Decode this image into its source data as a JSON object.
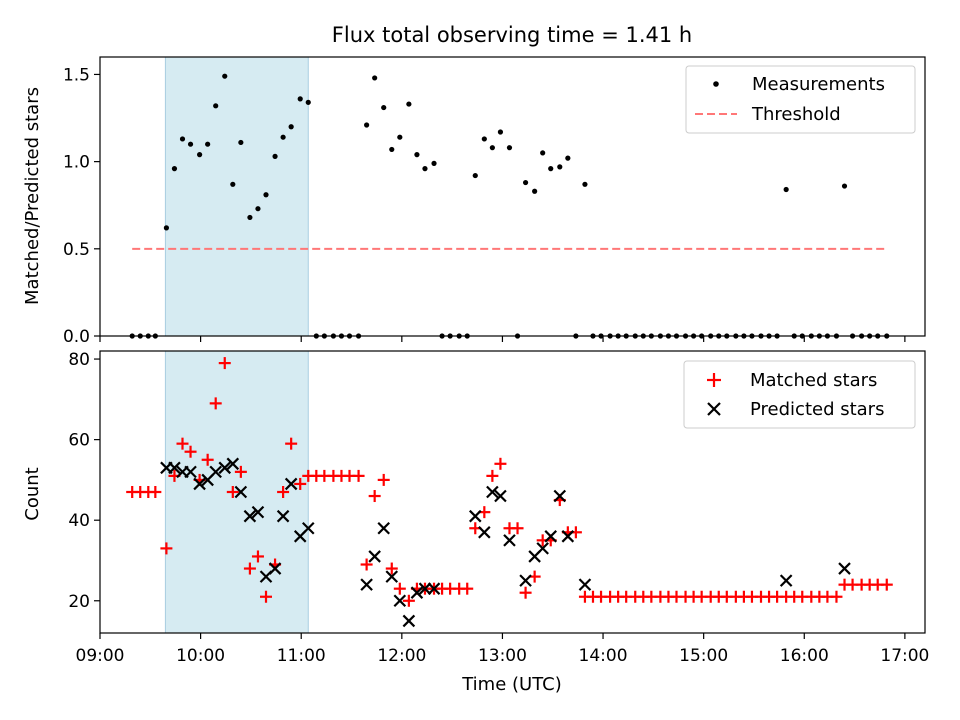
{
  "title": "Flux total observing time = 1.41 h",
  "chart_data": [
    {
      "type": "scatter",
      "ylabel": "Matched/Predicted stars",
      "xlim": [
        9.0,
        17.2
      ],
      "ylim": [
        0.0,
        1.6
      ],
      "yticks": [
        0.0,
        0.5,
        1.0,
        1.5
      ],
      "yticklabels": [
        "0.0",
        "0.5",
        "1.0",
        "1.5"
      ],
      "shaded_span": [
        9.65,
        11.07
      ],
      "threshold": {
        "x_range": [
          9.32,
          16.82
        ],
        "value": 0.5
      },
      "legend": {
        "position": "top-right",
        "measurements_label": "Measurements",
        "threshold_label": "Threshold"
      },
      "measurements": [
        [
          9.32,
          0
        ],
        [
          9.4,
          0
        ],
        [
          9.48,
          0
        ],
        [
          9.55,
          0
        ],
        [
          9.66,
          0.62
        ],
        [
          9.74,
          0.96
        ],
        [
          9.82,
          1.13
        ],
        [
          9.9,
          1.1
        ],
        [
          9.99,
          1.04
        ],
        [
          10.07,
          1.1
        ],
        [
          10.15,
          1.32
        ],
        [
          10.24,
          1.49
        ],
        [
          10.32,
          0.87
        ],
        [
          10.4,
          1.11
        ],
        [
          10.49,
          0.68
        ],
        [
          10.57,
          0.73
        ],
        [
          10.65,
          0.81
        ],
        [
          10.74,
          1.03
        ],
        [
          10.82,
          1.14
        ],
        [
          10.9,
          1.2
        ],
        [
          10.99,
          1.36
        ],
        [
          11.07,
          1.34
        ],
        [
          11.15,
          0
        ],
        [
          11.23,
          0
        ],
        [
          11.32,
          0
        ],
        [
          11.4,
          0
        ],
        [
          11.48,
          0
        ],
        [
          11.57,
          0
        ],
        [
          11.65,
          1.21
        ],
        [
          11.73,
          1.48
        ],
        [
          11.82,
          1.31
        ],
        [
          11.9,
          1.07
        ],
        [
          11.98,
          1.14
        ],
        [
          12.07,
          1.33
        ],
        [
          12.15,
          1.04
        ],
        [
          12.23,
          0.96
        ],
        [
          12.32,
          0.99
        ],
        [
          12.4,
          0
        ],
        [
          12.48,
          0
        ],
        [
          12.57,
          0
        ],
        [
          12.65,
          0
        ],
        [
          12.73,
          0.92
        ],
        [
          12.82,
          1.13
        ],
        [
          12.9,
          1.08
        ],
        [
          12.98,
          1.17
        ],
        [
          13.07,
          1.08
        ],
        [
          13.15,
          0
        ],
        [
          13.23,
          0.88
        ],
        [
          13.32,
          0.83
        ],
        [
          13.4,
          1.05
        ],
        [
          13.48,
          0.96
        ],
        [
          13.57,
          0.97
        ],
        [
          13.65,
          1.02
        ],
        [
          13.73,
          0
        ],
        [
          13.82,
          0.87
        ],
        [
          13.9,
          0
        ],
        [
          13.98,
          0
        ],
        [
          14.07,
          0
        ],
        [
          14.15,
          0
        ],
        [
          14.23,
          0
        ],
        [
          14.32,
          0
        ],
        [
          14.4,
          0
        ],
        [
          14.48,
          0
        ],
        [
          14.57,
          0
        ],
        [
          14.65,
          0
        ],
        [
          14.73,
          0
        ],
        [
          14.82,
          0
        ],
        [
          14.9,
          0
        ],
        [
          14.98,
          0
        ],
        [
          15.07,
          0
        ],
        [
          15.15,
          0
        ],
        [
          15.23,
          0
        ],
        [
          15.32,
          0
        ],
        [
          15.4,
          0
        ],
        [
          15.48,
          0
        ],
        [
          15.57,
          0
        ],
        [
          15.65,
          0
        ],
        [
          15.73,
          0
        ],
        [
          15.82,
          0.84
        ],
        [
          15.9,
          0
        ],
        [
          15.98,
          0
        ],
        [
          16.07,
          0
        ],
        [
          16.15,
          0
        ],
        [
          16.23,
          0
        ],
        [
          16.32,
          0
        ],
        [
          16.4,
          0.86
        ],
        [
          16.48,
          0
        ],
        [
          16.57,
          0
        ],
        [
          16.65,
          0
        ],
        [
          16.73,
          0
        ],
        [
          16.82,
          0
        ]
      ]
    },
    {
      "type": "scatter",
      "xlabel": "Time (UTC)",
      "ylabel": "Count",
      "xlim": [
        9.0,
        17.2
      ],
      "ylim": [
        12,
        82
      ],
      "yticks": [
        20,
        40,
        60,
        80
      ],
      "yticklabels": [
        "20",
        "40",
        "60",
        "80"
      ],
      "xticks": [
        9,
        10,
        11,
        12,
        13,
        14,
        15,
        16,
        17
      ],
      "xticklabels": [
        "09:00",
        "10:00",
        "11:00",
        "12:00",
        "13:00",
        "14:00",
        "15:00",
        "16:00",
        "17:00"
      ],
      "shaded_span": [
        9.65,
        11.07
      ],
      "legend": {
        "position": "top-right",
        "matched_label": "Matched stars",
        "predicted_label": "Predicted stars"
      },
      "matched_stars": [
        [
          9.32,
          47
        ],
        [
          9.4,
          47
        ],
        [
          9.48,
          47
        ],
        [
          9.55,
          47
        ],
        [
          9.66,
          33
        ],
        [
          9.74,
          51
        ],
        [
          9.82,
          59
        ],
        [
          9.9,
          57
        ],
        [
          9.99,
          50
        ],
        [
          10.07,
          55
        ],
        [
          10.15,
          69
        ],
        [
          10.24,
          79
        ],
        [
          10.32,
          47
        ],
        [
          10.4,
          52
        ],
        [
          10.49,
          28
        ],
        [
          10.57,
          31
        ],
        [
          10.65,
          21
        ],
        [
          10.74,
          29
        ],
        [
          10.82,
          47
        ],
        [
          10.9,
          59
        ],
        [
          10.99,
          49
        ],
        [
          11.07,
          51
        ],
        [
          11.15,
          51
        ],
        [
          11.23,
          51
        ],
        [
          11.32,
          51
        ],
        [
          11.4,
          51
        ],
        [
          11.48,
          51
        ],
        [
          11.57,
          51
        ],
        [
          11.65,
          29
        ],
        [
          11.73,
          46
        ],
        [
          11.82,
          50
        ],
        [
          11.9,
          28
        ],
        [
          11.98,
          23
        ],
        [
          12.07,
          20
        ],
        [
          12.15,
          23
        ],
        [
          12.23,
          23
        ],
        [
          12.32,
          23
        ],
        [
          12.4,
          23
        ],
        [
          12.48,
          23
        ],
        [
          12.57,
          23
        ],
        [
          12.65,
          23
        ],
        [
          12.73,
          38
        ],
        [
          12.82,
          42
        ],
        [
          12.9,
          51
        ],
        [
          12.98,
          54
        ],
        [
          13.07,
          38
        ],
        [
          13.15,
          38
        ],
        [
          13.23,
          22
        ],
        [
          13.32,
          26
        ],
        [
          13.4,
          35
        ],
        [
          13.48,
          35
        ],
        [
          13.57,
          45
        ],
        [
          13.65,
          37
        ],
        [
          13.73,
          37
        ],
        [
          13.82,
          21
        ],
        [
          13.9,
          21
        ],
        [
          13.98,
          21
        ],
        [
          14.07,
          21
        ],
        [
          14.15,
          21
        ],
        [
          14.23,
          21
        ],
        [
          14.32,
          21
        ],
        [
          14.4,
          21
        ],
        [
          14.48,
          21
        ],
        [
          14.57,
          21
        ],
        [
          14.65,
          21
        ],
        [
          14.73,
          21
        ],
        [
          14.82,
          21
        ],
        [
          14.9,
          21
        ],
        [
          14.98,
          21
        ],
        [
          15.07,
          21
        ],
        [
          15.15,
          21
        ],
        [
          15.23,
          21
        ],
        [
          15.32,
          21
        ],
        [
          15.4,
          21
        ],
        [
          15.48,
          21
        ],
        [
          15.57,
          21
        ],
        [
          15.65,
          21
        ],
        [
          15.73,
          21
        ],
        [
          15.82,
          21
        ],
        [
          15.9,
          21
        ],
        [
          15.98,
          21
        ],
        [
          16.07,
          21
        ],
        [
          16.15,
          21
        ],
        [
          16.23,
          21
        ],
        [
          16.32,
          21
        ],
        [
          16.4,
          24
        ],
        [
          16.48,
          24
        ],
        [
          16.57,
          24
        ],
        [
          16.65,
          24
        ],
        [
          16.73,
          24
        ],
        [
          16.82,
          24
        ]
      ],
      "predicted_stars": [
        [
          9.66,
          53
        ],
        [
          9.74,
          53
        ],
        [
          9.82,
          52
        ],
        [
          9.9,
          52
        ],
        [
          9.99,
          49
        ],
        [
          10.07,
          50
        ],
        [
          10.15,
          52
        ],
        [
          10.24,
          53
        ],
        [
          10.32,
          54
        ],
        [
          10.4,
          47
        ],
        [
          10.49,
          41
        ],
        [
          10.57,
          42
        ],
        [
          10.65,
          26
        ],
        [
          10.74,
          28
        ],
        [
          10.82,
          41
        ],
        [
          10.9,
          49
        ],
        [
          10.99,
          36
        ],
        [
          11.07,
          38
        ],
        [
          11.65,
          24
        ],
        [
          11.73,
          31
        ],
        [
          11.82,
          38
        ],
        [
          11.9,
          26
        ],
        [
          11.98,
          20
        ],
        [
          12.07,
          15
        ],
        [
          12.15,
          22
        ],
        [
          12.23,
          23
        ],
        [
          12.32,
          23
        ],
        [
          12.73,
          41
        ],
        [
          12.82,
          37
        ],
        [
          12.9,
          47
        ],
        [
          12.98,
          46
        ],
        [
          13.07,
          35
        ],
        [
          13.23,
          25
        ],
        [
          13.32,
          31
        ],
        [
          13.4,
          33
        ],
        [
          13.48,
          36
        ],
        [
          13.57,
          46
        ],
        [
          13.65,
          36
        ],
        [
          13.82,
          24
        ],
        [
          15.82,
          25
        ],
        [
          16.4,
          28
        ]
      ]
    }
  ]
}
